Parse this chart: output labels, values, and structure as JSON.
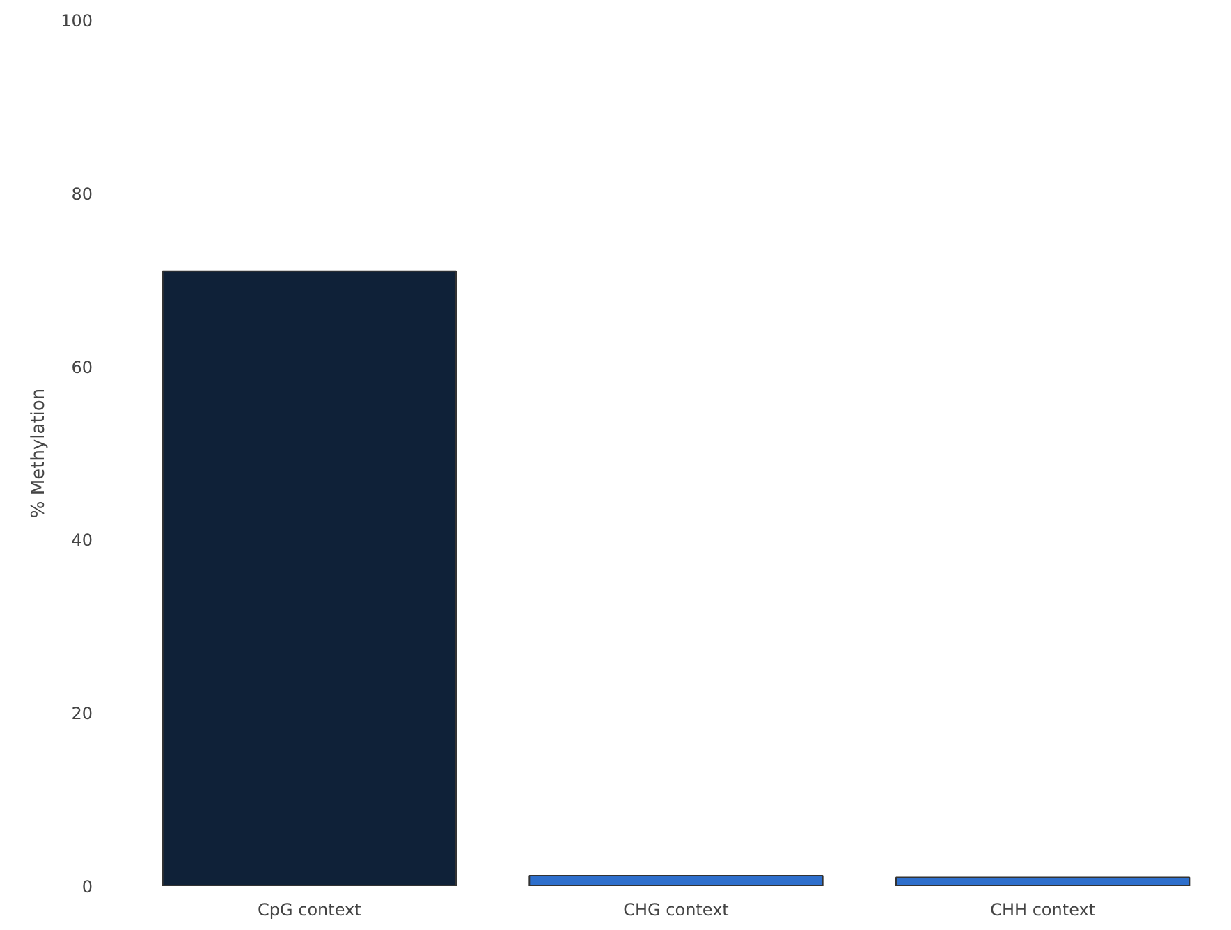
{
  "chart_data": {
    "type": "bar",
    "ylabel": "% Methylation",
    "categories": [
      "CpG context",
      "CHG context",
      "CHH context"
    ],
    "values": [
      71,
      1.2,
      1.0
    ],
    "colors": [
      "#0f2138",
      "#2e6fcc",
      "#2e6fcc"
    ],
    "ylim": [
      0,
      100
    ],
    "yticks": [
      0,
      20,
      40,
      60,
      80,
      100
    ],
    "grid": false
  }
}
